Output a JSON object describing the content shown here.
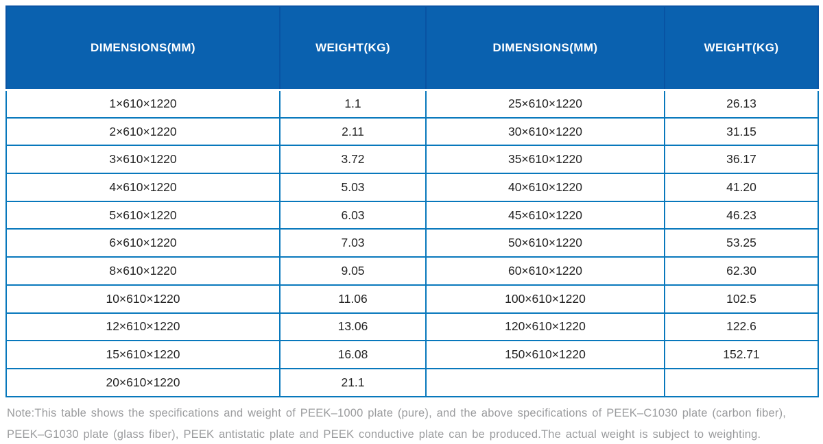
{
  "colors": {
    "header_background": "#0a61af",
    "header_divider": "#0853a3",
    "grid_line": "#0878bc",
    "cell_text": "#242424",
    "note_text": "#9b9c9e",
    "page_background": "#ffffff"
  },
  "table": {
    "headers": [
      "DIMENSIONS(MM)",
      "WEIGHT(KG)",
      "DIMENSIONS(MM)",
      "WEIGHT(KG)"
    ],
    "rows": [
      [
        "1×610×1220",
        "1.1",
        "25×610×1220",
        "26.13"
      ],
      [
        "2×610×1220",
        "2.11",
        "30×610×1220",
        "31.15"
      ],
      [
        "3×610×1220",
        "3.72",
        "35×610×1220",
        "36.17"
      ],
      [
        "4×610×1220",
        "5.03",
        "40×610×1220",
        "41.20"
      ],
      [
        "5×610×1220",
        "6.03",
        "45×610×1220",
        "46.23"
      ],
      [
        "6×610×1220",
        "7.03",
        "50×610×1220",
        "53.25"
      ],
      [
        "8×610×1220",
        "9.05",
        "60×610×1220",
        "62.30"
      ],
      [
        "10×610×1220",
        "11.06",
        "100×610×1220",
        "102.5"
      ],
      [
        "12×610×1220",
        "13.06",
        "120×610×1220",
        "122.6"
      ],
      [
        "15×610×1220",
        "16.08",
        "150×610×1220",
        "152.71"
      ],
      [
        "20×610×1220",
        "21.1",
        "",
        ""
      ]
    ]
  },
  "note": {
    "text": "Note:This table shows the specifications and weight of PEEK–1000 plate (pure), and the above specifications of PEEK–C1030 plate (carbon fiber), PEEK–G1030 plate (glass fiber), PEEK antistatic plate and PEEK conductive plate can be produced.The actual weight is subject to weighting."
  }
}
